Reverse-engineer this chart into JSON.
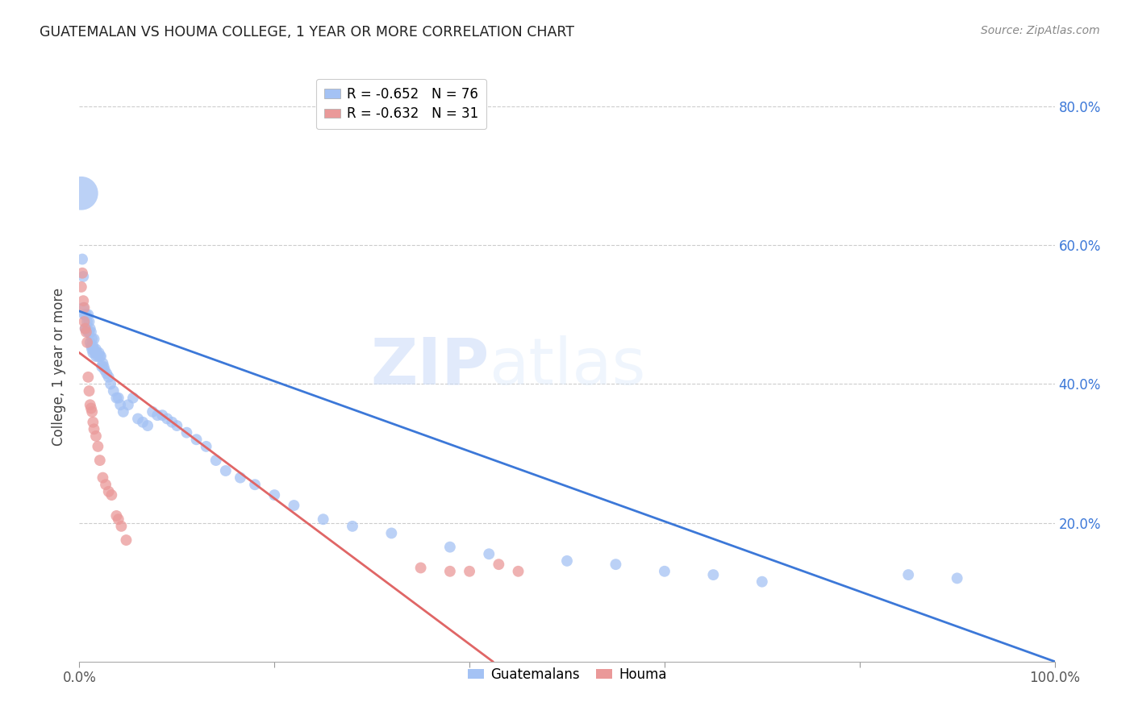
{
  "title": "GUATEMALAN VS HOUMA COLLEGE, 1 YEAR OR MORE CORRELATION CHART",
  "source": "Source: ZipAtlas.com",
  "ylabel": "College, 1 year or more",
  "xlim": [
    0.0,
    1.0
  ],
  "ylim": [
    0.0,
    0.85
  ],
  "xtick_positions": [
    0.0,
    0.2,
    0.4,
    0.6,
    0.8,
    1.0
  ],
  "xtick_labels": [
    "0.0%",
    "",
    "",
    "",
    "",
    "100.0%"
  ],
  "ytick_positions": [
    0.2,
    0.4,
    0.6,
    0.8
  ],
  "ytick_labels_right": [
    "20.0%",
    "40.0%",
    "60.0%",
    "80.0%"
  ],
  "grid_color": "#cccccc",
  "background_color": "#ffffff",
  "blue_color": "#a4c2f4",
  "pink_color": "#ea9999",
  "blue_line_color": "#3c78d8",
  "pink_line_color": "#e06666",
  "legend_R_blue": "-0.652",
  "legend_N_blue": "76",
  "legend_R_pink": "-0.632",
  "legend_N_pink": "31",
  "legend_label_blue": "Guatemalans",
  "legend_label_pink": "Houma",
  "watermark_zip": "ZIP",
  "watermark_atlas": "atlas",
  "blue_intercept": 0.505,
  "blue_slope": -0.505,
  "pink_intercept": 0.445,
  "pink_slope": -1.05,
  "guatemalan_x": [
    0.002,
    0.003,
    0.004,
    0.004,
    0.005,
    0.006,
    0.006,
    0.007,
    0.007,
    0.008,
    0.009,
    0.009,
    0.01,
    0.01,
    0.011,
    0.011,
    0.012,
    0.012,
    0.013,
    0.013,
    0.014,
    0.014,
    0.015,
    0.015,
    0.016,
    0.017,
    0.017,
    0.018,
    0.019,
    0.02,
    0.021,
    0.022,
    0.023,
    0.024,
    0.025,
    0.026,
    0.028,
    0.03,
    0.032,
    0.035,
    0.038,
    0.04,
    0.042,
    0.045,
    0.05,
    0.055,
    0.06,
    0.065,
    0.07,
    0.075,
    0.08,
    0.085,
    0.09,
    0.095,
    0.1,
    0.11,
    0.12,
    0.13,
    0.14,
    0.15,
    0.165,
    0.18,
    0.2,
    0.22,
    0.25,
    0.28,
    0.32,
    0.38,
    0.42,
    0.5,
    0.55,
    0.6,
    0.65,
    0.7,
    0.85,
    0.9
  ],
  "guatemalan_y": [
    0.675,
    0.58,
    0.555,
    0.51,
    0.5,
    0.5,
    0.48,
    0.5,
    0.48,
    0.49,
    0.5,
    0.475,
    0.475,
    0.49,
    0.48,
    0.46,
    0.475,
    0.455,
    0.465,
    0.45,
    0.455,
    0.445,
    0.45,
    0.465,
    0.445,
    0.45,
    0.44,
    0.445,
    0.44,
    0.445,
    0.44,
    0.44,
    0.425,
    0.43,
    0.425,
    0.42,
    0.415,
    0.41,
    0.4,
    0.39,
    0.38,
    0.38,
    0.37,
    0.36,
    0.37,
    0.38,
    0.35,
    0.345,
    0.34,
    0.36,
    0.355,
    0.355,
    0.35,
    0.345,
    0.34,
    0.33,
    0.32,
    0.31,
    0.29,
    0.275,
    0.265,
    0.255,
    0.24,
    0.225,
    0.205,
    0.195,
    0.185,
    0.165,
    0.155,
    0.145,
    0.14,
    0.13,
    0.125,
    0.115,
    0.125,
    0.12
  ],
  "guatemalan_sizes": [
    900,
    100,
    100,
    100,
    100,
    100,
    100,
    100,
    100,
    100,
    100,
    100,
    100,
    100,
    100,
    100,
    100,
    100,
    100,
    100,
    100,
    100,
    100,
    100,
    100,
    100,
    100,
    100,
    100,
    100,
    100,
    100,
    100,
    100,
    100,
    100,
    100,
    100,
    100,
    100,
    100,
    100,
    100,
    100,
    100,
    100,
    100,
    100,
    100,
    100,
    100,
    100,
    100,
    100,
    100,
    100,
    100,
    100,
    100,
    100,
    100,
    100,
    100,
    100,
    100,
    100,
    100,
    100,
    100,
    100,
    100,
    100,
    100,
    100,
    100,
    100
  ],
  "houma_x": [
    0.002,
    0.003,
    0.004,
    0.005,
    0.005,
    0.006,
    0.007,
    0.008,
    0.009,
    0.01,
    0.011,
    0.012,
    0.013,
    0.014,
    0.015,
    0.017,
    0.019,
    0.021,
    0.024,
    0.027,
    0.03,
    0.033,
    0.038,
    0.04,
    0.043,
    0.048,
    0.35,
    0.38,
    0.4,
    0.43,
    0.45
  ],
  "houma_y": [
    0.54,
    0.56,
    0.52,
    0.51,
    0.49,
    0.48,
    0.475,
    0.46,
    0.41,
    0.39,
    0.37,
    0.365,
    0.36,
    0.345,
    0.335,
    0.325,
    0.31,
    0.29,
    0.265,
    0.255,
    0.245,
    0.24,
    0.21,
    0.205,
    0.195,
    0.175,
    0.135,
    0.13,
    0.13,
    0.14,
    0.13
  ],
  "houma_sizes": [
    100,
    100,
    100,
    100,
    100,
    100,
    100,
    100,
    100,
    100,
    100,
    100,
    100,
    100,
    100,
    100,
    100,
    100,
    100,
    100,
    100,
    100,
    100,
    100,
    100,
    100,
    100,
    100,
    100,
    100,
    100
  ]
}
